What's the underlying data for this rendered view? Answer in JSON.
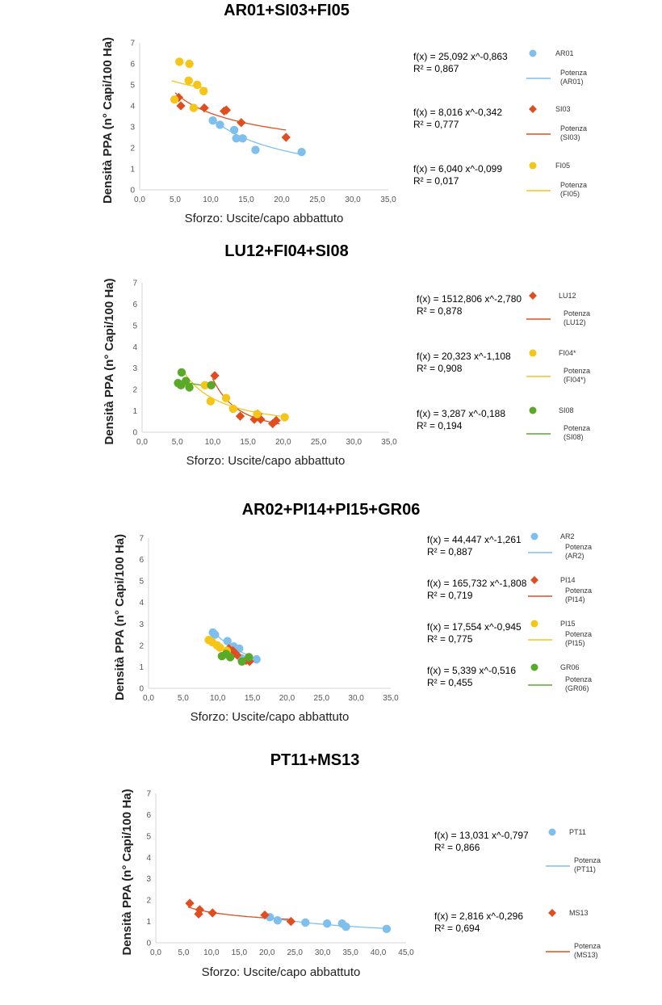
{
  "chart_data": [
    {
      "type": "scatter",
      "title": "AR01+SI03+FI05",
      "xlabel": "Sforzo: Uscite/capo abbattuto",
      "ylabel": "Densità  PPA (n° Capi/100 Ha)",
      "xlim": [
        0,
        35
      ],
      "ylim": [
        0,
        7
      ],
      "xticks": [
        "0,0",
        "5,0",
        "10,0",
        "15,0",
        "20,0",
        "25,0",
        "30,0",
        "35,0"
      ],
      "yticks": [
        "0",
        "1",
        "2",
        "3",
        "4",
        "5",
        "6",
        "7"
      ],
      "series": [
        {
          "name": "AR01",
          "color": "#7fbfee",
          "marker": "circle",
          "x": [
            10.3,
            11.3,
            13.3,
            13.6,
            14.5,
            16.3,
            22.8
          ],
          "y": [
            3.3,
            3.1,
            2.85,
            2.45,
            2.45,
            1.9,
            1.8
          ],
          "fit": {
            "a": 25.092,
            "b": -0.863,
            "x0": 10.0,
            "x1": 23.0
          },
          "equation": "f(x) = 25,092 x^-0,863",
          "r2": "R² = 0,867",
          "fit_label": [
            "Potenza",
            "(AR01)"
          ]
        },
        {
          "name": "SI03",
          "color": "#e04e1f",
          "marker": "diamond",
          "x": [
            5.5,
            5.8,
            9.1,
            11.9,
            12.2,
            14.3,
            20.6
          ],
          "y": [
            4.4,
            4.0,
            3.9,
            3.75,
            3.8,
            3.2,
            2.5
          ],
          "fit": {
            "a": 8.016,
            "b": -0.342,
            "x0": 5.0,
            "x1": 20.6
          },
          "equation": "f(x) = 8,016 x^-0,342",
          "r2": "R² = 0,777",
          "fit_label": [
            "Potenza",
            "(SI03)"
          ]
        },
        {
          "name": "FI05",
          "color": "#f5c518",
          "marker": "circle",
          "x": [
            4.9,
            5.6,
            6.9,
            7.0,
            7.6,
            8.1,
            9.0
          ],
          "y": [
            4.3,
            6.1,
            5.2,
            6.0,
            3.9,
            5.0,
            4.7
          ],
          "fit": {
            "a": 6.04,
            "b": -0.099,
            "x0": 4.5,
            "x1": 9.5
          },
          "equation": "f(x) = 6,040 x^-0,099",
          "r2": "R² = 0,017",
          "fit_label": [
            "Potenza",
            "(FI05)"
          ]
        }
      ]
    },
    {
      "type": "scatter",
      "title": "LU12+FI04+SI08",
      "xlabel": "Sforzo: Uscite/capo abbattuto",
      "ylabel": "Densità  PPA (n° Capi/100 Ha)",
      "xlim": [
        0,
        35
      ],
      "ylim": [
        0,
        7
      ],
      "xticks": [
        "0,0",
        "5,0",
        "10,0",
        "15,0",
        "20,0",
        "25,0",
        "30,0",
        "35,0"
      ],
      "yticks": [
        "0",
        "1",
        "2",
        "3",
        "4",
        "5",
        "6",
        "7"
      ],
      "series": [
        {
          "name": "LU12",
          "color": "#e04e1f",
          "marker": "diamond",
          "x": [
            10.3,
            13.9,
            15.9,
            16.4,
            16.8,
            18.5,
            19.0
          ],
          "y": [
            2.65,
            0.75,
            0.6,
            0.85,
            0.6,
            0.4,
            0.55
          ],
          "fit": {
            "a": 1512.806,
            "b": -2.78,
            "x0": 10.0,
            "x1": 19.5
          },
          "equation": "f(x) = 1512,806 x^-2,780",
          "r2": "R² = 0,878",
          "fit_label": [
            "Potenza",
            "(LU12)"
          ]
        },
        {
          "name": "FI04*",
          "color": "#f5c518",
          "marker": "circle",
          "x": [
            6.2,
            8.9,
            9.7,
            11.9,
            12.9,
            16.3,
            20.2
          ],
          "y": [
            2.3,
            2.2,
            1.45,
            1.6,
            1.1,
            0.85,
            0.7
          ],
          "fit": {
            "a": 20.323,
            "b": -1.108,
            "x0": 6.0,
            "x1": 20.5
          },
          "equation": "f(x) = 20,323 x^-1,108",
          "r2": "R² = 0,908",
          "fit_label": [
            "Potenza",
            "(FI04*)"
          ]
        },
        {
          "name": "SI08",
          "color": "#5aaa2a",
          "marker": "circle",
          "x": [
            5.1,
            5.5,
            5.6,
            6.2,
            6.7,
            9.8
          ],
          "y": [
            2.3,
            2.2,
            2.8,
            2.4,
            2.1,
            2.2
          ],
          "fit": {
            "a": 3.287,
            "b": -0.188,
            "x0": 5.0,
            "x1": 10.0
          },
          "equation": "f(x) = 3,287 x^-0,188",
          "r2": "R² = 0,194",
          "fit_label": [
            "Potenza",
            "(SI08)"
          ]
        }
      ]
    },
    {
      "type": "scatter",
      "title": "AR02+PI14+PI15+GR06",
      "xlabel": "Sforzo: Uscite/capo abbattuto",
      "ylabel": "Densità  PPA (n° Capi/100 Ha)",
      "xlim": [
        0,
        35
      ],
      "ylim": [
        0,
        7
      ],
      "xticks": [
        "0,0",
        "5,0",
        "10,0",
        "15,0",
        "20,0",
        "25,0",
        "30,0",
        "35,0"
      ],
      "yticks": [
        "0",
        "1",
        "2",
        "3",
        "4",
        "5",
        "6",
        "7"
      ],
      "series": [
        {
          "name": "AR2",
          "color": "#7fbfee",
          "marker": "circle",
          "x": [
            9.3,
            9.6,
            11.4,
            12.3,
            13.1,
            13.4,
            15.6
          ],
          "y": [
            2.6,
            2.5,
            2.2,
            1.95,
            1.85,
            1.4,
            1.35
          ],
          "fit": {
            "a": 44.447,
            "b": -1.261,
            "x0": 9.0,
            "x1": 15.7
          },
          "equation": "f(x) = 44,447 x^-1,261",
          "r2": "R² = 0,887",
          "fit_label": [
            "Potenza",
            "(AR2)"
          ]
        },
        {
          "name": "PI14",
          "color": "#e04e1f",
          "marker": "diamond",
          "x": [
            11.6,
            12.2,
            12.8,
            14.1,
            14.6
          ],
          "y": [
            1.85,
            1.75,
            1.55,
            1.3,
            1.25
          ],
          "fit": {
            "a": 165.732,
            "b": -1.808,
            "x0": 11.4,
            "x1": 14.8
          },
          "equation": "f(x) = 165,732 x^-1,808",
          "r2": "R² = 0,719",
          "fit_label": [
            "Potenza",
            "(PI14)"
          ]
        },
        {
          "name": "PI15",
          "color": "#f5c518",
          "marker": "circle",
          "x": [
            8.7,
            9.2,
            9.9,
            10.3,
            11.3
          ],
          "y": [
            2.25,
            2.15,
            2.0,
            1.9,
            1.75
          ],
          "fit": {
            "a": 17.554,
            "b": -0.945,
            "x0": 8.5,
            "x1": 11.5
          },
          "equation": "f(x) = 17,554 x^-0,945",
          "r2": "R² = 0,775",
          "fit_label": [
            "Potenza",
            "(PI15)"
          ]
        },
        {
          "name": "GR06",
          "color": "#5aaa2a",
          "marker": "circle",
          "x": [
            10.6,
            11.2,
            11.8,
            13.5,
            14.5
          ],
          "y": [
            1.5,
            1.6,
            1.45,
            1.25,
            1.45
          ],
          "fit": {
            "a": 5.339,
            "b": -0.516,
            "x0": 10.4,
            "x1": 14.7
          },
          "equation": "f(x) = 5,339 x^-0,516",
          "r2": "R² = 0,455",
          "fit_label": [
            "Potenza",
            "(GR06)"
          ]
        }
      ]
    },
    {
      "type": "scatter",
      "title": "PT11+MS13",
      "xlabel": "Sforzo: Uscite/capo abbattuto",
      "ylabel": "Densità  PPA (n° Capi/100 Ha)",
      "xlim": [
        0,
        45
      ],
      "ylim": [
        0,
        7
      ],
      "xticks": [
        "0,0",
        "5,0",
        "10,0",
        "15,0",
        "20,0",
        "25,0",
        "30,0",
        "35,0",
        "40,0",
        "45,0"
      ],
      "yticks": [
        "0",
        "1",
        "2",
        "3",
        "4",
        "5",
        "6",
        "7"
      ],
      "series": [
        {
          "name": "PT11",
          "color": "#7fbfee",
          "marker": "circle",
          "x": [
            20.5,
            21.9,
            26.9,
            30.8,
            33.5,
            34.2,
            41.5
          ],
          "y": [
            1.2,
            1.05,
            0.95,
            0.9,
            0.9,
            0.75,
            0.65
          ],
          "fit": {
            "a": 13.031,
            "b": -0.797,
            "x0": 20.0,
            "x1": 42.0
          },
          "equation": "f(x) = 13,031 x^-0,797",
          "r2": "R² = 0,866",
          "fit_label": [
            "Potenza",
            "(PT11)"
          ]
        },
        {
          "name": "MS13",
          "color": "#e04e1f",
          "marker": "diamond",
          "x": [
            6.1,
            7.7,
            7.9,
            10.2,
            19.6,
            24.3
          ],
          "y": [
            1.85,
            1.35,
            1.55,
            1.4,
            1.3,
            1.0
          ],
          "fit": {
            "a": 2.816,
            "b": -0.296,
            "x0": 5.8,
            "x1": 24.5
          },
          "equation": "f(x) = 2,816 x^-0,296",
          "r2": "R² = 0,694",
          "fit_label": [
            "Potenza",
            "(MS13)"
          ]
        }
      ]
    }
  ]
}
